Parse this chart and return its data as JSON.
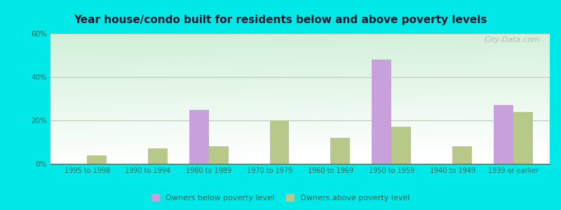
{
  "title": "Year house/condo built for residents below and above poverty levels",
  "categories": [
    "1995 to 1998",
    "1990 to 1994",
    "1980 to 1989",
    "1970 to 1979",
    "1960 to 1969",
    "1950 to 1959",
    "1940 to 1949",
    "1939 or earlier"
  ],
  "below_poverty": [
    0,
    0,
    25,
    0,
    0,
    48,
    0,
    27
  ],
  "above_poverty": [
    4,
    7,
    8,
    20,
    12,
    17,
    8,
    24
  ],
  "below_color": "#c8a0dc",
  "above_color": "#b8c888",
  "ylim": [
    0,
    60
  ],
  "yticks": [
    0,
    20,
    40,
    60
  ],
  "ytick_labels": [
    "0%",
    "20%",
    "40%",
    "60%"
  ],
  "background_outer": "#00e8e8",
  "background_plot_topleft": "#d0f0d8",
  "background_plot_bottomright": "#f0f8f0",
  "grid_color": "#bbccbb",
  "bar_width": 0.32,
  "legend_below_label": "Owners below poverty level",
  "legend_above_label": "Owners above poverty level",
  "watermark": "City-Data.com",
  "title_color": "#1a1a2e",
  "tick_color": "#336655"
}
